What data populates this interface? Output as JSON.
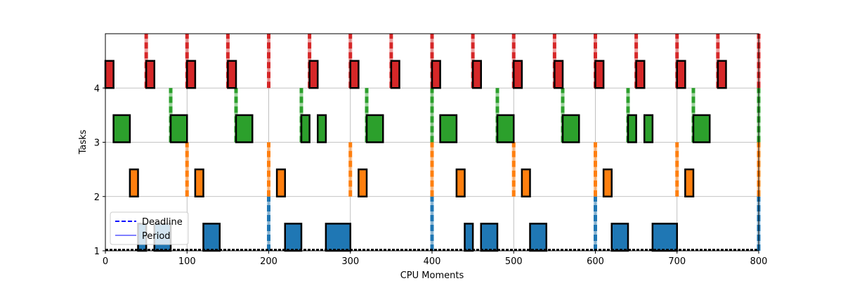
{
  "chart_data": {
    "type": "gantt",
    "xlabel": "CPU Moments",
    "ylabel": "Tasks",
    "xlim": [
      0,
      800
    ],
    "ylim": [
      1,
      5
    ],
    "xticks": [
      0,
      100,
      200,
      300,
      400,
      500,
      600,
      700,
      800
    ],
    "yticks": [
      1,
      2,
      3,
      4
    ],
    "grid": true,
    "legend_position": "bottom-left",
    "legend": [
      {
        "label": "Deadline",
        "style": "dashed",
        "color": "#0000ff"
      },
      {
        "label": "Period",
        "style": "solid",
        "color": "#8080ff"
      }
    ],
    "tasks": [
      {
        "level": 1,
        "color": "#1f77b4",
        "markers": [
          200,
          400,
          600,
          800
        ],
        "intervals": [
          [
            40,
            50
          ],
          [
            60,
            80
          ],
          [
            120,
            140
          ],
          [
            220,
            240
          ],
          [
            270,
            300
          ],
          [
            440,
            450
          ],
          [
            460,
            480
          ],
          [
            520,
            540
          ],
          [
            620,
            640
          ],
          [
            670,
            700
          ]
        ]
      },
      {
        "level": 2,
        "color": "#ff7f0e",
        "markers": [
          100,
          200,
          300,
          400,
          500,
          600,
          700,
          800
        ],
        "intervals": [
          [
            30,
            40
          ],
          [
            110,
            120
          ],
          [
            210,
            220
          ],
          [
            310,
            320
          ],
          [
            430,
            440
          ],
          [
            510,
            520
          ],
          [
            610,
            620
          ],
          [
            710,
            720
          ]
        ]
      },
      {
        "level": 3,
        "color": "#2ca02c",
        "markers": [
          80,
          160,
          240,
          320,
          400,
          480,
          560,
          640,
          720,
          800
        ],
        "intervals": [
          [
            10,
            30
          ],
          [
            80,
            100
          ],
          [
            160,
            180
          ],
          [
            240,
            250
          ],
          [
            260,
            270
          ],
          [
            320,
            340
          ],
          [
            410,
            430
          ],
          [
            480,
            500
          ],
          [
            560,
            580
          ],
          [
            640,
            650
          ],
          [
            660,
            670
          ],
          [
            720,
            740
          ]
        ]
      },
      {
        "level": 4,
        "color": "#d62728",
        "markers": [
          50,
          100,
          150,
          200,
          250,
          300,
          350,
          400,
          450,
          500,
          550,
          600,
          650,
          700,
          750,
          800
        ],
        "intervals": [
          [
            0,
            10
          ],
          [
            50,
            60
          ],
          [
            100,
            110
          ],
          [
            150,
            160
          ],
          [
            250,
            260
          ],
          [
            300,
            310
          ],
          [
            350,
            360
          ],
          [
            400,
            410
          ],
          [
            450,
            460
          ],
          [
            500,
            510
          ],
          [
            550,
            560
          ],
          [
            600,
            610
          ],
          [
            650,
            660
          ],
          [
            700,
            710
          ],
          [
            750,
            760
          ]
        ]
      }
    ]
  }
}
